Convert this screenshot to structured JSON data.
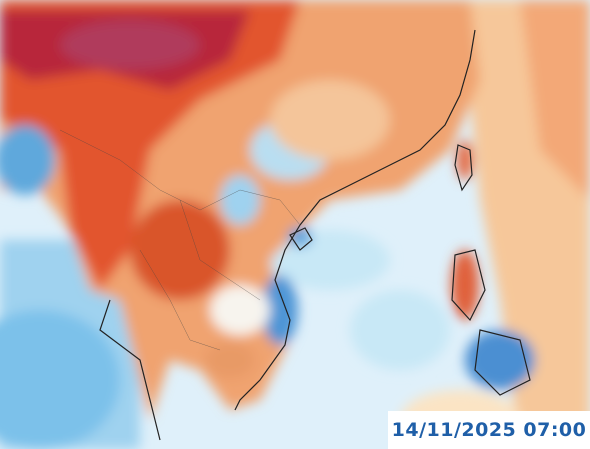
{
  "timestamp": "14/11/2025 07:00"
}
